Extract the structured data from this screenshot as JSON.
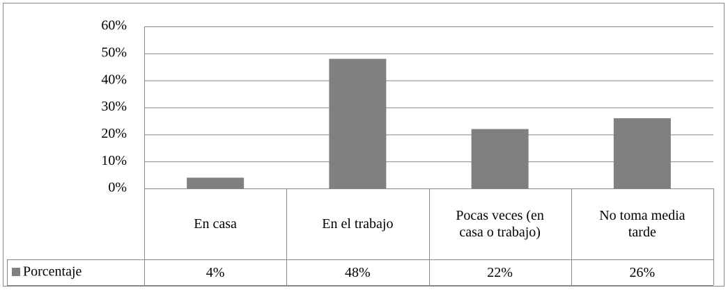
{
  "chart_data": {
    "type": "bar",
    "categories": [
      "En casa",
      "En el trabajo",
      "Pocas veces (en casa o trabajo)",
      "No toma media tarde"
    ],
    "series": [
      {
        "name": "Porcentaje",
        "color": "#808080",
        "values": [
          4,
          48,
          22,
          26
        ],
        "value_labels": [
          "4%",
          "48%",
          "22%",
          "26%"
        ]
      }
    ],
    "ylim": [
      0,
      60
    ],
    "yticks": [
      {
        "value": 0,
        "label": "0%"
      },
      {
        "value": 10,
        "label": "10%"
      },
      {
        "value": 20,
        "label": "20%"
      },
      {
        "value": 30,
        "label": "30%"
      },
      {
        "value": 40,
        "label": "40%"
      },
      {
        "value": 50,
        "label": "50%"
      },
      {
        "value": 60,
        "label": "60%"
      }
    ],
    "grid": true
  }
}
